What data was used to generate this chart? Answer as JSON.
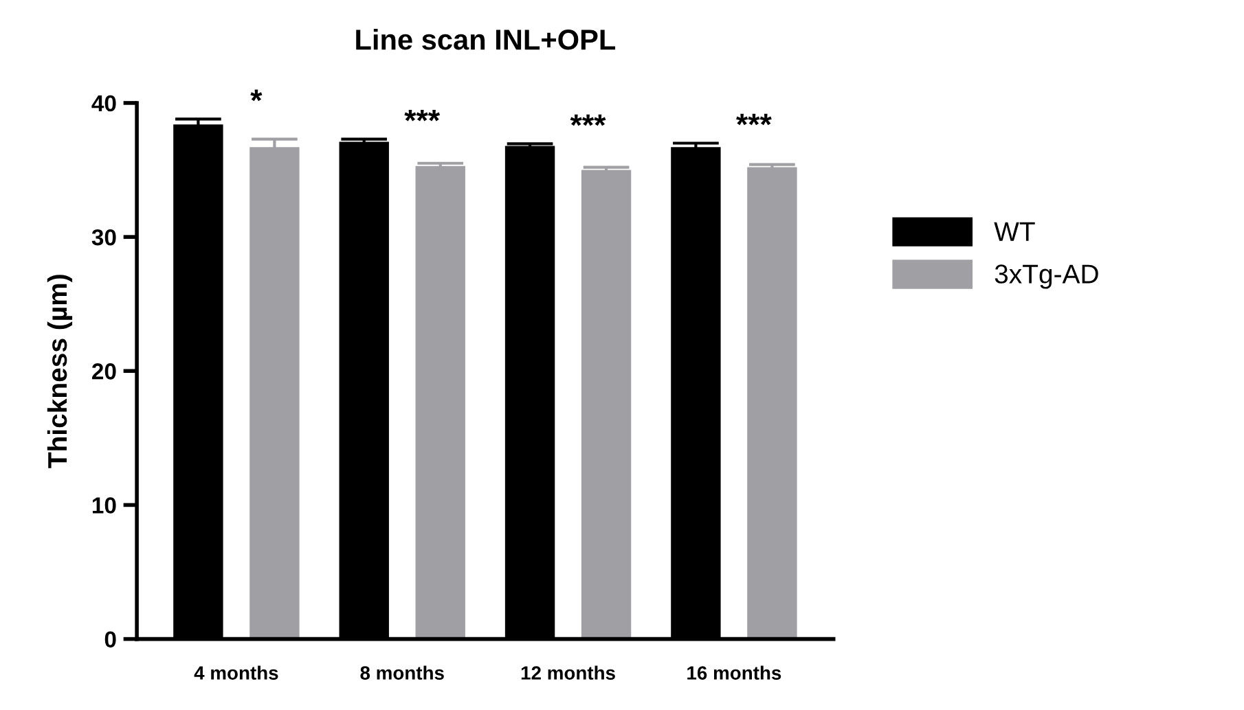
{
  "chart_data": {
    "type": "bar",
    "title": "Line scan INL+OPL",
    "ylabel": "Thickness (µm)",
    "categories": [
      "4 months",
      "8 months",
      "12 months",
      "16 months"
    ],
    "series": [
      {
        "name": "WT",
        "color": "#000000",
        "values": [
          38.4,
          37.1,
          36.8,
          36.7
        ],
        "errors": [
          0.4,
          0.2,
          0.15,
          0.3
        ]
      },
      {
        "name": "3xTg-AD",
        "color": "#a0a0a4",
        "values": [
          36.7,
          35.3,
          35.0,
          35.2
        ],
        "errors": [
          0.6,
          0.2,
          0.2,
          0.2
        ]
      }
    ],
    "ylim": [
      0,
      40
    ],
    "yticks": [
      0,
      10,
      20,
      30,
      40
    ],
    "grid": false,
    "legend": "right",
    "annotations": [
      "*",
      "***",
      "***",
      "***"
    ]
  }
}
